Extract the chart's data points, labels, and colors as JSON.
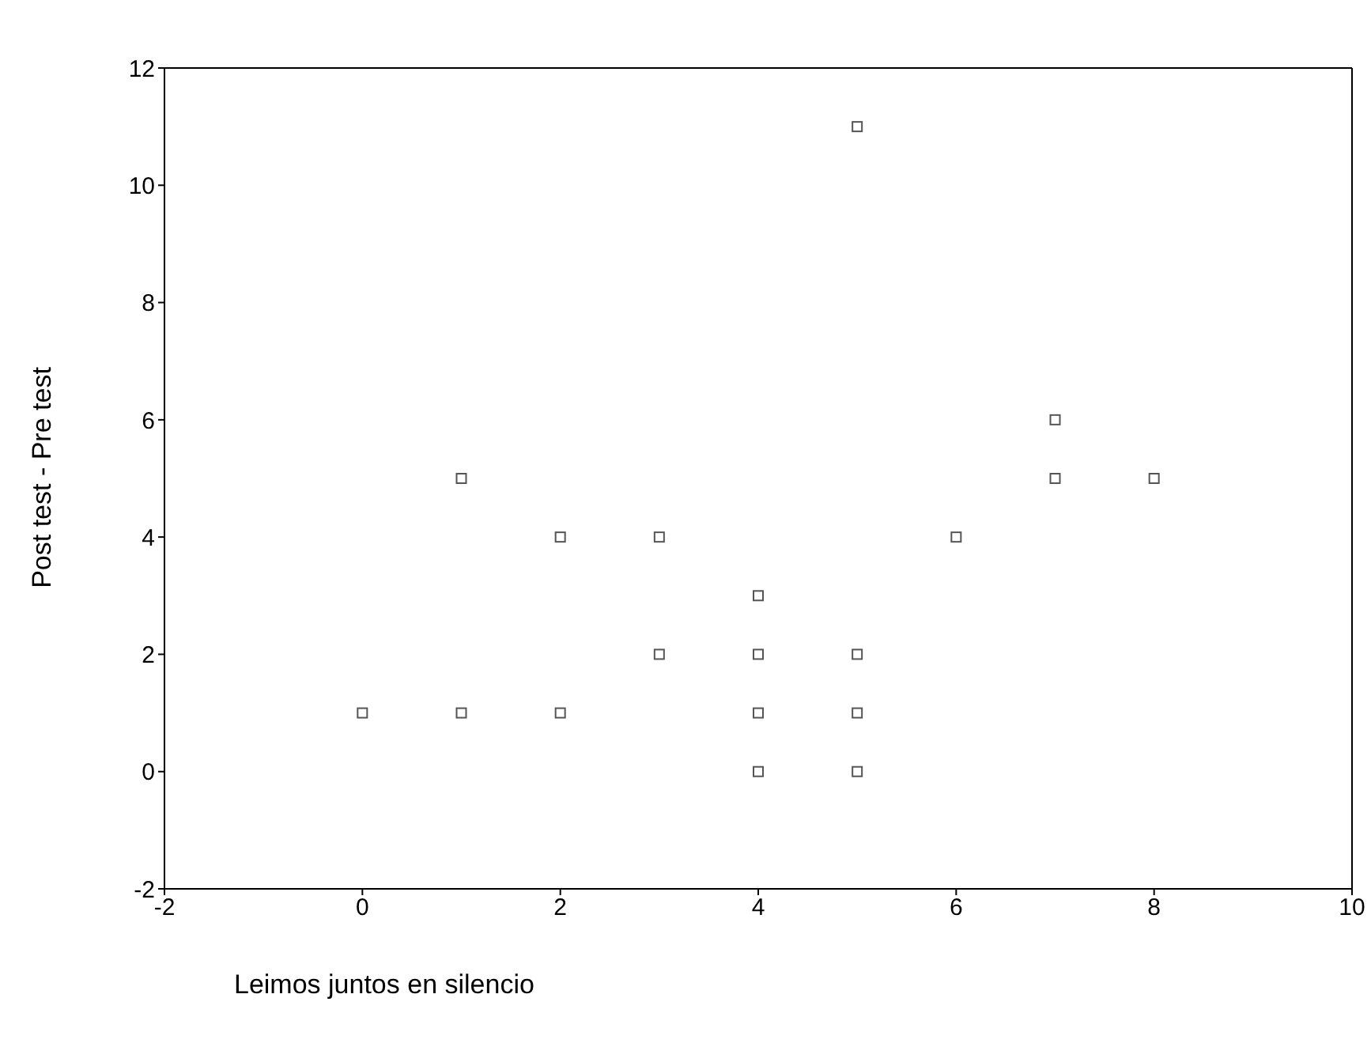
{
  "chart_data": {
    "type": "scatter",
    "xlabel": "Leimos juntos en silencio",
    "ylabel": "Post test - Pre test",
    "x": [
      0,
      1,
      1,
      2,
      2,
      3,
      3,
      4,
      4,
      4,
      4,
      5,
      5,
      5,
      5,
      6,
      7,
      7,
      8
    ],
    "values": [
      1,
      1,
      5,
      1,
      4,
      2,
      4,
      0,
      1,
      2,
      3,
      0,
      1,
      2,
      11,
      4,
      5,
      6,
      5
    ],
    "color": "#555555",
    "marker": "square",
    "xlim": [
      -2,
      10
    ],
    "xticks": [
      -2,
      0,
      2,
      4,
      6,
      8,
      10
    ],
    "ylim": [
      -2,
      12
    ],
    "yticks": [
      -2,
      0,
      2,
      4,
      6,
      8,
      10,
      12
    ]
  }
}
